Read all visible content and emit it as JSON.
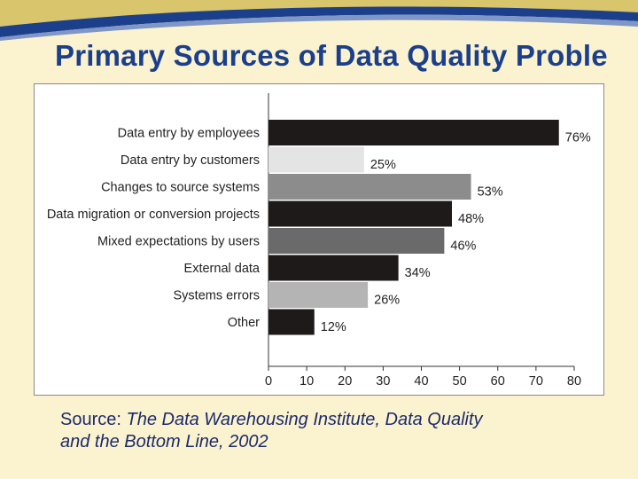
{
  "slide": {
    "title": "Primary Sources of Data Quality Proble",
    "source_prefix": "Source: ",
    "source_line1": "The Data Warehousing Institute, Data Quality",
    "source_line2": "and the Bottom Line, 2002"
  },
  "chart_data": {
    "type": "bar",
    "orientation": "horizontal",
    "categories": [
      "Data entry by employees",
      "Data entry by customers",
      "Changes to source systems",
      "Data migration or conversion projects",
      "Mixed expectations by users",
      "External data",
      "Systems errors",
      "Other"
    ],
    "values": [
      76,
      25,
      53,
      48,
      46,
      34,
      26,
      12
    ],
    "value_labels": [
      "76%",
      "25%",
      "53%",
      "48%",
      "46%",
      "34%",
      "26%",
      "12%"
    ],
    "bar_colors": [
      "#1f1a1a",
      "#e4e4e4",
      "#8c8c8c",
      "#1f1a1a",
      "#6a6a6a",
      "#1f1a1a",
      "#b4b4b4",
      "#1f1a1a"
    ],
    "x_ticks": [
      "0",
      "10",
      "20",
      "30",
      "40",
      "50",
      "60",
      "70",
      "80"
    ],
    "xlim": [
      0,
      80
    ],
    "grid": false
  }
}
